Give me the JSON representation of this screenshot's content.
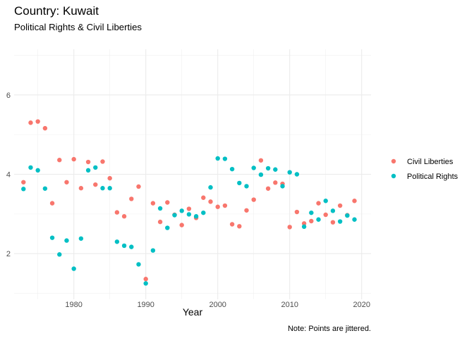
{
  "chart_data": {
    "type": "scatter",
    "title": "Country: Kuwait",
    "subtitle": "Political Rights & Civil Liberties",
    "xlabel": "Year",
    "ylabel": "",
    "caption": "Note: Points are jittered.",
    "xlim": [
      1971.7,
      2021.3
    ],
    "ylim": [
      0.85,
      7.15
    ],
    "xticks": [
      1980,
      1990,
      2000,
      2010,
      2020
    ],
    "yticks": [
      2,
      4,
      6
    ],
    "grid": true,
    "legend_position": "right",
    "series": [
      {
        "name": "Civil Liberties",
        "color": "#F8766D",
        "points": [
          [
            1973,
            3.8
          ],
          [
            1974,
            5.3
          ],
          [
            1975,
            5.33
          ],
          [
            1976,
            5.16
          ],
          [
            1977,
            3.27
          ],
          [
            1978,
            4.36
          ],
          [
            1979,
            3.8
          ],
          [
            1980,
            4.38
          ],
          [
            1981,
            3.65
          ],
          [
            1982,
            4.31
          ],
          [
            1983,
            3.74
          ],
          [
            1984,
            4.32
          ],
          [
            1985,
            3.9
          ],
          [
            1986,
            3.04
          ],
          [
            1987,
            2.94
          ],
          [
            1988,
            3.38
          ],
          [
            1989,
            3.69
          ],
          [
            1990,
            1.36
          ],
          [
            1991,
            3.27
          ],
          [
            1992,
            2.8
          ],
          [
            1993,
            3.29
          ],
          [
            1994,
            2.98
          ],
          [
            1995,
            2.72
          ],
          [
            1996,
            3.13
          ],
          [
            1997,
            2.9
          ],
          [
            1998,
            3.41
          ],
          [
            1999,
            3.31
          ],
          [
            2000,
            3.18
          ],
          [
            2001,
            3.21
          ],
          [
            2002,
            2.74
          ],
          [
            2003,
            2.69
          ],
          [
            2004,
            3.09
          ],
          [
            2005,
            3.36
          ],
          [
            2006,
            4.35
          ],
          [
            2007,
            3.64
          ],
          [
            2008,
            3.79
          ],
          [
            2009,
            3.76
          ],
          [
            2010,
            2.67
          ],
          [
            2011,
            3.05
          ],
          [
            2012,
            2.76
          ],
          [
            2013,
            2.82
          ],
          [
            2014,
            3.27
          ],
          [
            2015,
            2.98
          ],
          [
            2016,
            2.79
          ],
          [
            2017,
            3.21
          ],
          [
            2018,
            2.97
          ],
          [
            2019,
            3.33
          ]
        ]
      },
      {
        "name": "Political Rights",
        "color": "#00BFC4",
        "points": [
          [
            1973,
            3.63
          ],
          [
            1974,
            4.17
          ],
          [
            1975,
            4.1
          ],
          [
            1976,
            3.64
          ],
          [
            1977,
            2.4
          ],
          [
            1978,
            1.98
          ],
          [
            1979,
            2.33
          ],
          [
            1980,
            1.62
          ],
          [
            1981,
            2.38
          ],
          [
            1982,
            4.1
          ],
          [
            1983,
            4.17
          ],
          [
            1984,
            3.65
          ],
          [
            1985,
            3.65
          ],
          [
            1986,
            2.3
          ],
          [
            1987,
            2.2
          ],
          [
            1988,
            2.17
          ],
          [
            1989,
            1.73
          ],
          [
            1990,
            1.25
          ],
          [
            1991,
            2.08
          ],
          [
            1992,
            3.14
          ],
          [
            1993,
            2.65
          ],
          [
            1994,
            2.97
          ],
          [
            1995,
            3.08
          ],
          [
            1996,
            2.99
          ],
          [
            1997,
            2.94
          ],
          [
            1998,
            3.03
          ],
          [
            1999,
            3.67
          ],
          [
            2000,
            4.4
          ],
          [
            2001,
            4.39
          ],
          [
            2002,
            4.13
          ],
          [
            2003,
            3.78
          ],
          [
            2004,
            3.7
          ],
          [
            2005,
            4.16
          ],
          [
            2006,
            3.99
          ],
          [
            2007,
            4.15
          ],
          [
            2008,
            4.12
          ],
          [
            2009,
            3.7
          ],
          [
            2010,
            4.05
          ],
          [
            2011,
            4.0
          ],
          [
            2012,
            2.68
          ],
          [
            2013,
            3.03
          ],
          [
            2014,
            2.86
          ],
          [
            2015,
            3.33
          ],
          [
            2016,
            3.08
          ],
          [
            2017,
            2.81
          ],
          [
            2018,
            2.96
          ],
          [
            2019,
            2.86
          ]
        ]
      }
    ]
  }
}
